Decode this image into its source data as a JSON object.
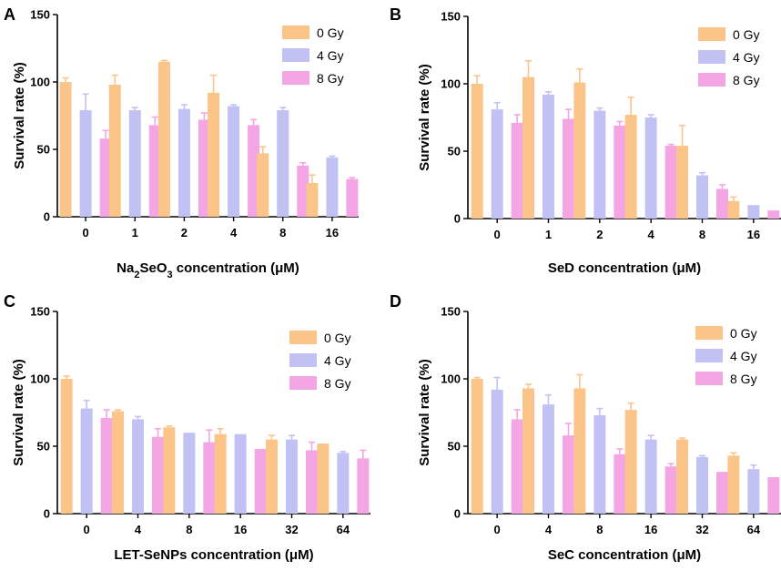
{
  "chart_data": [
    {
      "type": "bar",
      "panel": "A",
      "categories": [
        "0",
        "1",
        "2",
        "4",
        "8",
        "16"
      ],
      "xlabel_parts": [
        {
          "text": "Na"
        },
        {
          "text": "2",
          "sub": true
        },
        {
          "text": "SeO"
        },
        {
          "text": "3",
          "sub": true
        },
        {
          "text": " concentration (μM)"
        }
      ],
      "ylabel": "Survival rate (%)",
      "ylim": [
        0,
        150
      ],
      "yticks": [
        "0",
        "50",
        "100",
        "150"
      ],
      "legend_position": "top-right",
      "series": [
        {
          "name": "0 Gy",
          "values": [
            100,
            98,
            115,
            92,
            47,
            25
          ],
          "errors": [
            3,
            7,
            1,
            13,
            5,
            6
          ]
        },
        {
          "name": "4 Gy",
          "values": [
            79,
            79,
            80,
            82,
            79,
            44
          ],
          "errors": [
            12,
            2,
            3,
            1,
            2,
            1
          ]
        },
        {
          "name": "8 Gy",
          "values": [
            58,
            68,
            72,
            68,
            38,
            28
          ],
          "errors": [
            6,
            6,
            5,
            4,
            2,
            1
          ]
        }
      ]
    },
    {
      "type": "bar",
      "panel": "B",
      "categories": [
        "0",
        "1",
        "2",
        "4",
        "8",
        "16"
      ],
      "xlabel_parts": [
        {
          "text": "SeD concentration (μM)"
        }
      ],
      "ylabel": "Survival rate (%)",
      "ylim": [
        0,
        150
      ],
      "yticks": [
        "0",
        "50",
        "100",
        "150"
      ],
      "legend_position": "top-right",
      "series": [
        {
          "name": "0 Gy",
          "values": [
            100,
            105,
            101,
            77,
            54,
            13
          ],
          "errors": [
            6,
            12,
            10,
            13,
            15,
            3
          ]
        },
        {
          "name": "4 Gy",
          "values": [
            81,
            92,
            80,
            75,
            32,
            10
          ],
          "errors": [
            5,
            2,
            2,
            2,
            2,
            0
          ]
        },
        {
          "name": "8 Gy",
          "values": [
            71,
            74,
            69,
            54,
            22,
            6
          ],
          "errors": [
            6,
            7,
            3,
            1,
            3,
            0
          ]
        }
      ]
    },
    {
      "type": "bar",
      "panel": "C",
      "categories": [
        "0",
        "4",
        "8",
        "16",
        "32",
        "64"
      ],
      "xlabel_parts": [
        {
          "text": "LET-SeNPs concentration (μM)"
        }
      ],
      "ylabel": "Survival rate (%)",
      "ylim": [
        0,
        150
      ],
      "yticks": [
        "0",
        "50",
        "100",
        "150"
      ],
      "legend_position": "top-right",
      "series": [
        {
          "name": "0 Gy",
          "values": [
            100,
            76,
            64,
            59,
            55,
            52
          ],
          "errors": [
            2,
            1,
            1,
            4,
            3,
            0
          ]
        },
        {
          "name": "4 Gy",
          "values": [
            78,
            70,
            60,
            59,
            55,
            45
          ],
          "errors": [
            6,
            2,
            0,
            0,
            3,
            1
          ]
        },
        {
          "name": "8 Gy",
          "values": [
            71,
            57,
            53,
            48,
            47,
            41
          ],
          "errors": [
            6,
            6,
            9,
            0,
            6,
            6
          ]
        }
      ]
    },
    {
      "type": "bar",
      "panel": "D",
      "categories": [
        "0",
        "4",
        "8",
        "16",
        "32",
        "64"
      ],
      "xlabel_parts": [
        {
          "text": "SeC concentration (μM)"
        }
      ],
      "ylabel": "Survival rate (%)",
      "ylim": [
        0,
        150
      ],
      "yticks": [
        "0",
        "50",
        "100",
        "150"
      ],
      "legend_position": "top-right",
      "series": [
        {
          "name": "0 Gy",
          "values": [
            100,
            93,
            93,
            77,
            55,
            43
          ],
          "errors": [
            1,
            3,
            10,
            5,
            1,
            2
          ]
        },
        {
          "name": "4 Gy",
          "values": [
            92,
            81,
            73,
            55,
            42,
            33
          ],
          "errors": [
            9,
            7,
            5,
            3,
            1,
            3
          ]
        },
        {
          "name": "8 Gy",
          "values": [
            70,
            58,
            44,
            35,
            31,
            27
          ],
          "errors": [
            7,
            9,
            4,
            2,
            0,
            0
          ]
        }
      ]
    }
  ],
  "series_colors": [
    "#fbc58a",
    "#c1c1f4",
    "#f3a5e4"
  ]
}
